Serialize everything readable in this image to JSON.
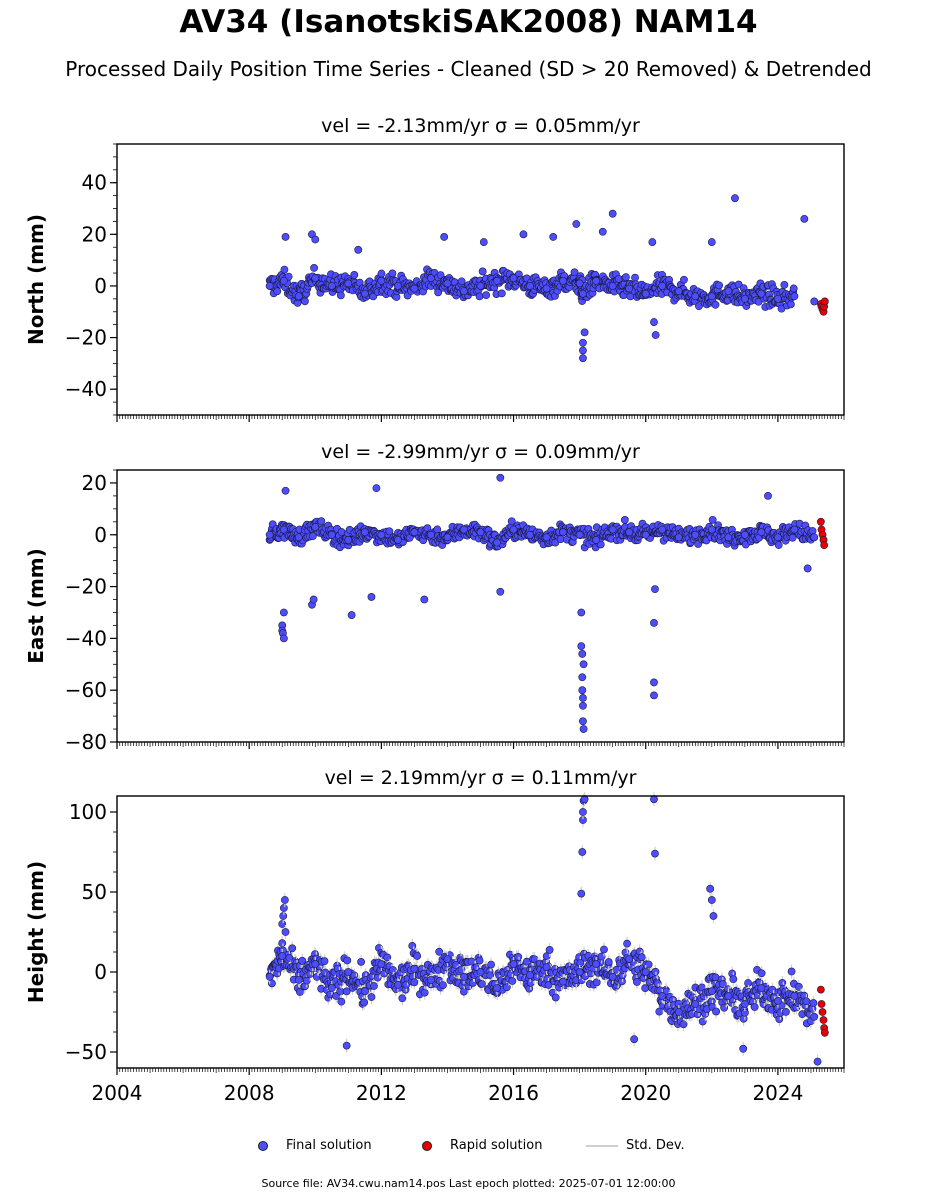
{
  "title": "AV34 (IsanotskiSAK2008) NAM14",
  "subtitle": "Processed Daily Position Time Series - Cleaned (SD > 20 Removed) & Detrended",
  "legend": {
    "final": "Final solution",
    "rapid": "Rapid solution",
    "sd": "Std. Dev."
  },
  "footer": "Source file: AV34.cwu.nam14.pos  Last epoch plotted: 2025-07-01 12:00:00",
  "colors": {
    "final": "#4d4dff",
    "rapid": "#e80000",
    "sd": "#cfcfcf"
  },
  "chart_data": [
    {
      "type": "scatter",
      "panel": "north",
      "title": "vel = -2.13mm/yr   σ = 0.05mm/yr",
      "ylabel": "North (mm)",
      "xlim": [
        2004.0,
        2026.0
      ],
      "ylim": [
        -50,
        55
      ],
      "yticks": [
        -40,
        -20,
        0,
        20,
        40
      ],
      "yticklabels": [
        "−40",
        "−20",
        "0",
        "20",
        "40"
      ],
      "series": [
        {
          "kind": "final",
          "x": [
            2008.62,
            2009.05,
            2009.5,
            2010.0,
            2010.5,
            2011.0,
            2011.5,
            2012.0,
            2012.5,
            2013.0,
            2013.5,
            2014.0,
            2014.5,
            2015.0,
            2015.5,
            2016.0,
            2016.5,
            2017.0,
            2017.5,
            2018.0,
            2018.1,
            2018.5,
            2019.0,
            2019.5,
            2020.0,
            2020.5,
            2021.0,
            2021.5,
            2022.0,
            2022.5,
            2023.0,
            2023.5,
            2024.0,
            2024.5,
            2025.1,
            2009.1,
            2009.9,
            2010.0,
            2011.3,
            2013.9,
            2015.1,
            2016.3,
            2017.2,
            2017.9,
            2018.7,
            2019.0,
            2020.2,
            2022.0,
            2022.7,
            2024.8,
            2018.1,
            2018.1,
            2018.1,
            2018.15,
            2020.25,
            2020.3
          ],
          "y": [
            0,
            2,
            -4,
            3,
            0,
            1,
            -3,
            2,
            0,
            -1,
            3,
            1,
            -2,
            0,
            2,
            3,
            0,
            -1,
            2,
            1,
            -3,
            2,
            0,
            -1,
            -3,
            0,
            -2,
            -4,
            -4,
            -2,
            -5,
            -3,
            -5,
            -4,
            -6,
            19,
            20,
            18,
            14,
            19,
            17,
            20,
            19,
            24,
            21,
            28,
            17,
            17,
            34,
            26,
            -25,
            -28,
            -22,
            -18,
            -14,
            -19
          ]
        },
        {
          "kind": "rapid",
          "x": [
            2025.3,
            2025.32,
            2025.35,
            2025.38,
            2025.4,
            2025.42
          ],
          "y": [
            -7,
            -8,
            -9,
            -10,
            -8,
            -6
          ]
        }
      ]
    },
    {
      "type": "scatter",
      "panel": "east",
      "title": "vel = -2.99mm/yr   σ = 0.09mm/yr",
      "ylabel": "East (mm)",
      "xlim": [
        2004.0,
        2026.0
      ],
      "ylim": [
        -80,
        25
      ],
      "yticks": [
        -80,
        -60,
        -40,
        -20,
        0,
        20
      ],
      "yticklabels": [
        "−80",
        "−60",
        "−40",
        "−20",
        "0",
        "20"
      ],
      "series": [
        {
          "kind": "final",
          "x": [
            2008.62,
            2009.05,
            2009.5,
            2010.0,
            2010.5,
            2011.0,
            2011.5,
            2012.0,
            2012.5,
            2013.0,
            2013.5,
            2014.0,
            2014.5,
            2015.0,
            2015.5,
            2016.0,
            2016.5,
            2017.0,
            2017.5,
            2018.0,
            2018.5,
            2019.0,
            2019.5,
            2020.0,
            2020.5,
            2021.0,
            2021.5,
            2022.0,
            2022.5,
            2023.0,
            2023.5,
            2024.0,
            2024.5,
            2025.1,
            2009.0,
            2009.0,
            2009.02,
            2009.05,
            2009.05,
            2009.9,
            2009.95,
            2011.1,
            2011.7,
            2013.3,
            2015.6,
            2018.05,
            2018.05,
            2018.08,
            2018.08,
            2018.08,
            2018.1,
            2018.1,
            2018.1,
            2018.12,
            2018.12,
            2020.25,
            2020.25,
            2020.25,
            2020.28,
            2009.1,
            2011.85,
            2015.6,
            2023.7,
            2024.9
          ],
          "y": [
            0,
            2,
            -1,
            3,
            0,
            -2,
            1,
            0,
            -2,
            1,
            0,
            -1,
            2,
            1,
            -3,
            2,
            0,
            -1,
            1,
            0,
            -2,
            2,
            1,
            0,
            2,
            -1,
            0,
            2,
            -1,
            0,
            1,
            -1,
            2,
            -1,
            -35,
            -37,
            -38,
            -40,
            -30,
            -27,
            -25,
            -31,
            -24,
            -25,
            -22,
            -30,
            -43,
            -46,
            -55,
            -60,
            -63,
            -66,
            -72,
            -75,
            -50,
            -34,
            -57,
            -62,
            -21,
            17,
            18,
            22,
            15,
            -13
          ]
        },
        {
          "kind": "rapid",
          "x": [
            2025.3,
            2025.32,
            2025.35,
            2025.38,
            2025.4
          ],
          "y": [
            5,
            2,
            0,
            -2,
            -4
          ]
        }
      ]
    },
    {
      "type": "scatter",
      "panel": "height",
      "title": "vel = 2.19mm/yr   σ = 0.11mm/yr",
      "ylabel": "Height (mm)",
      "xlim": [
        2004.0,
        2026.0
      ],
      "ylim": [
        -60,
        110
      ],
      "yticks": [
        -50,
        0,
        50,
        100
      ],
      "yticklabels": [
        "−50",
        "0",
        "50",
        "100"
      ],
      "series": [
        {
          "kind": "final",
          "x": [
            2008.62,
            2009.0,
            2009.5,
            2010.0,
            2010.5,
            2011.0,
            2011.5,
            2012.0,
            2012.5,
            2013.0,
            2013.5,
            2014.0,
            2014.5,
            2015.0,
            2015.5,
            2016.0,
            2016.5,
            2017.0,
            2017.5,
            2018.0,
            2018.5,
            2019.0,
            2019.5,
            2020.0,
            2020.5,
            2021.0,
            2021.5,
            2022.0,
            2022.5,
            2023.0,
            2023.5,
            2024.0,
            2024.5,
            2025.1,
            2009.0,
            2009.03,
            2009.05,
            2009.08,
            2009.1,
            2018.05,
            2018.08,
            2018.1,
            2018.1,
            2018.12,
            2018.15,
            2020.25,
            2020.28,
            2021.95,
            2022.0,
            2022.05,
            2010.95,
            2019.65,
            2022.95,
            2025.2
          ],
          "y": [
            -3,
            10,
            -5,
            5,
            -10,
            0,
            -12,
            5,
            -8,
            2,
            -5,
            8,
            -3,
            0,
            -10,
            5,
            -2,
            3,
            -6,
            0,
            5,
            -3,
            8,
            0,
            -15,
            -25,
            -20,
            -12,
            -15,
            -20,
            -10,
            -18,
            -15,
            -28,
            30,
            35,
            40,
            45,
            25,
            49,
            75,
            95,
            100,
            107,
            108,
            108,
            74,
            52,
            45,
            35,
            -46,
            -42,
            -48,
            -56
          ]
        },
        {
          "kind": "rapid",
          "x": [
            2025.3,
            2025.32,
            2025.35,
            2025.38,
            2025.4,
            2025.42
          ],
          "y": [
            -11,
            -20,
            -25,
            -30,
            -35,
            -38
          ]
        }
      ]
    }
  ],
  "xaxis": {
    "ticks": [
      2004,
      2008,
      2012,
      2016,
      2020,
      2024
    ],
    "ticklabels": [
      "2004",
      "2008",
      "2012",
      "2016",
      "2020",
      "2024"
    ]
  }
}
